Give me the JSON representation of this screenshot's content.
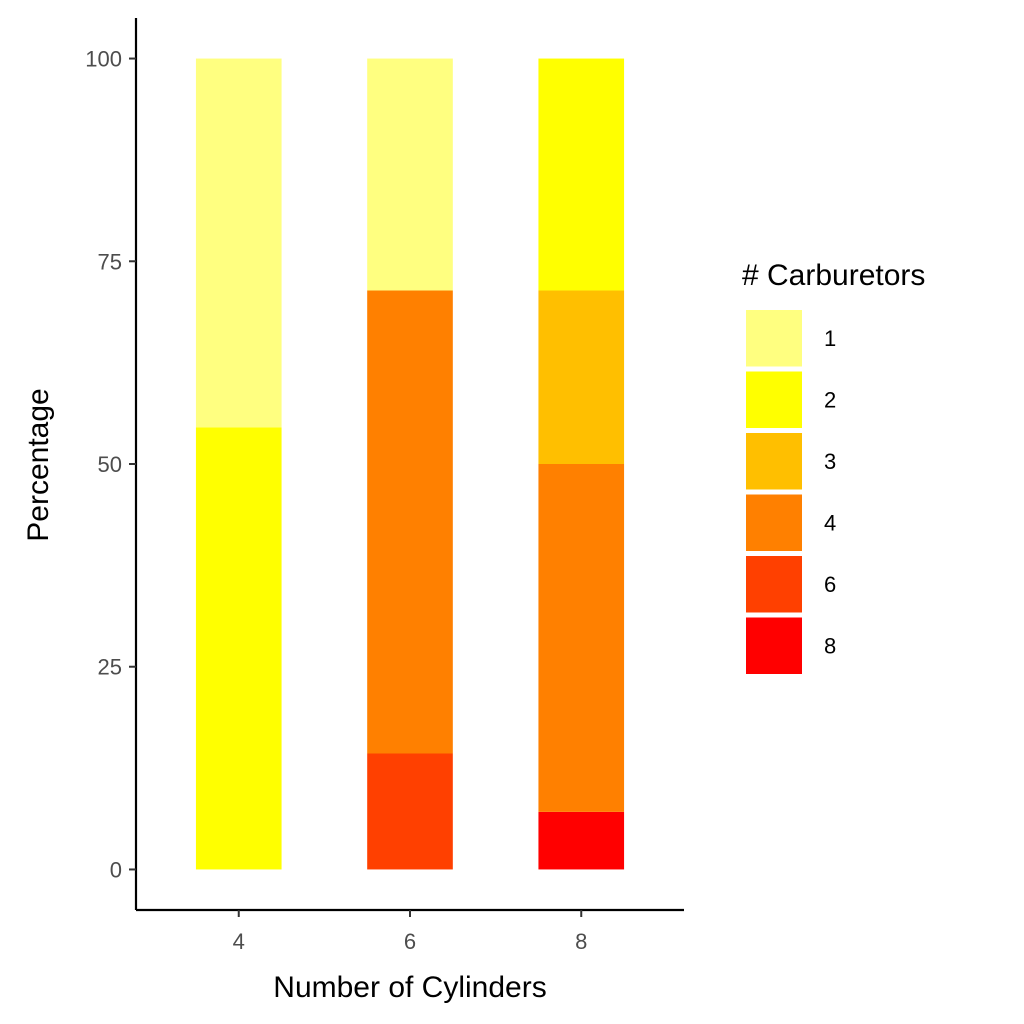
{
  "chart_data": {
    "type": "bar",
    "stacked": true,
    "title": "",
    "xlabel": "Number of Cylinders",
    "ylabel": "Percentage",
    "categories": [
      "4",
      "6",
      "8"
    ],
    "ylim": [
      -5,
      105
    ],
    "yticks": [
      0,
      25,
      50,
      75,
      100
    ],
    "grid": false,
    "legend": {
      "title": "# Carburetors",
      "position": "right"
    },
    "series": [
      {
        "name": "1",
        "color": "#FFFF80",
        "values": [
          45.5,
          28.6,
          0
        ]
      },
      {
        "name": "2",
        "color": "#FFFF00",
        "values": [
          54.5,
          0,
          28.6
        ]
      },
      {
        "name": "3",
        "color": "#FFBF00",
        "values": [
          0,
          0,
          21.4
        ]
      },
      {
        "name": "4",
        "color": "#FF8000",
        "values": [
          0,
          57.1,
          42.9
        ]
      },
      {
        "name": "6",
        "color": "#FF4000",
        "values": [
          0,
          14.3,
          0
        ]
      },
      {
        "name": "8",
        "color": "#FF0000",
        "values": [
          0,
          0,
          7.1
        ]
      }
    ]
  }
}
